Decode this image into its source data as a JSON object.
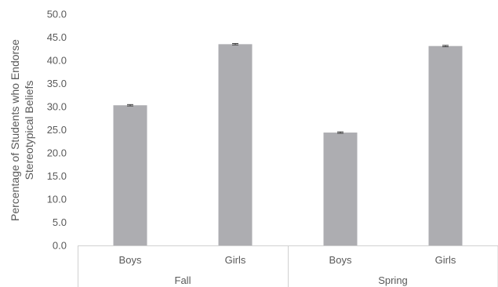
{
  "chart_data": {
    "type": "bar",
    "title": "",
    "xlabel": "",
    "ylabel_lines": [
      "Percentage of Students who Endorse",
      "Stereotypical Beliefs"
    ],
    "ylim": [
      0,
      50
    ],
    "yticks": [
      "0.0",
      "5.0",
      "10.0",
      "15.0",
      "20.0",
      "25.0",
      "30.0",
      "35.0",
      "40.0",
      "45.0",
      "50.0"
    ],
    "groups": [
      {
        "label": "Fall",
        "categories": [
          "Boys",
          "Girls"
        ]
      },
      {
        "label": "Spring",
        "categories": [
          "Boys",
          "Girls"
        ]
      }
    ],
    "values": [
      30.3,
      43.5,
      24.4,
      43.1
    ],
    "error": [
      0.15,
      0.15,
      0.15,
      0.15
    ],
    "bar_color": "#adadb1",
    "error_color": "#404040",
    "axis_color": "#d0d0d0",
    "grid": false,
    "legend": "none"
  }
}
